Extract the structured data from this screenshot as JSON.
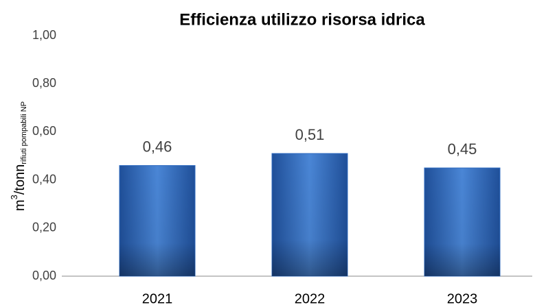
{
  "chart_data": {
    "type": "bar",
    "title": "Efficienza utilizzo risorsa idrica",
    "y_label": {
      "base": "m",
      "sup": "3",
      "mid": "/tonn",
      "sub": "rifiuti pompabili NP"
    },
    "categories": [
      "2021",
      "2022",
      "2023"
    ],
    "values": [
      0.46,
      0.51,
      0.45
    ],
    "value_labels": [
      "0,46",
      "0,51",
      "0,45"
    ],
    "color": "#2f6bc0",
    "ylim": [
      0,
      1
    ],
    "yticks": [
      {
        "value": 0,
        "label": "0,00"
      },
      {
        "value": 0.2,
        "label": "0,20"
      },
      {
        "value": 0.4,
        "label": "0,40"
      },
      {
        "value": 0.6,
        "label": "0,60"
      },
      {
        "value": 0.8,
        "label": "0,80"
      },
      {
        "value": 1,
        "label": "1,00"
      }
    ],
    "grid": false
  }
}
